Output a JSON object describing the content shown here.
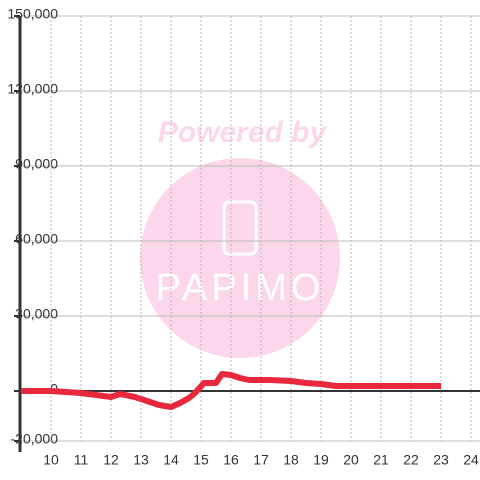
{
  "chart_data": {
    "type": "line",
    "x": [
      9,
      10,
      11,
      11.5,
      12,
      12.3,
      12.8,
      13.3,
      13.6,
      14,
      14.3,
      14.6,
      14.8,
      15.1,
      15.5,
      15.7,
      16,
      16.3,
      16.6,
      17.3,
      18,
      18.5,
      19,
      19.5,
      20,
      23
    ],
    "series": [
      {
        "name": "balance",
        "color": "#e8283c",
        "values": [
          0,
          0,
          -800,
          -1600,
          -2400,
          -1200,
          -2400,
          -4400,
          -5600,
          -6400,
          -4800,
          -2800,
          -800,
          3200,
          3200,
          6800,
          6400,
          5200,
          4400,
          4400,
          4000,
          3200,
          2800,
          2000,
          2000,
          2000
        ]
      }
    ],
    "xlim": [
      9,
      24.3
    ],
    "xticks": [
      10,
      11,
      12,
      13,
      14,
      15,
      16,
      17,
      18,
      19,
      20,
      21,
      22,
      23,
      24
    ],
    "ylim": [
      -20000,
      150000
    ],
    "yticks": [
      {
        "value": -20000,
        "label": "-20,000"
      },
      0,
      {
        "value": 30000,
        "label": "30,000"
      },
      {
        "value": 60000,
        "label": "60,000"
      },
      {
        "value": 90000,
        "label": "90,000"
      },
      {
        "value": 120000,
        "label": "120,000"
      },
      {
        "value": 150000,
        "label": "150,000"
      }
    ],
    "grid": true,
    "watermark": {
      "line1": "Powered by",
      "line2": "PAPIMO"
    }
  }
}
